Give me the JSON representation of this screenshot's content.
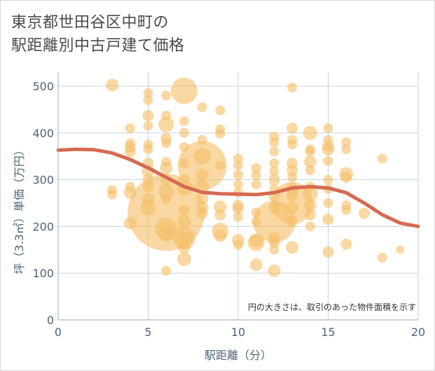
{
  "title": "東京都世田谷区中町の\n駅距離別中古戸建て価格",
  "chart_data": {
    "type": "scatter",
    "title": "東京都世田谷区中町の駅距離別中古戸建て価格",
    "xlabel": "駅距離（分）",
    "ylabel": "坪（3.3㎡）単価（万円）",
    "xlim": [
      0,
      20
    ],
    "ylim": [
      0,
      530
    ],
    "x_ticks": [
      "0",
      "5",
      "10",
      "15",
      "20"
    ],
    "y_ticks": [
      "0",
      "100",
      "200",
      "300",
      "400",
      "500"
    ],
    "x_tick_values": [
      0,
      5,
      10,
      15,
      20
    ],
    "y_tick_values": [
      0,
      100,
      200,
      300,
      400,
      500
    ],
    "grid": true,
    "annotation": "円の大きさは、取引のあった物件面積を示す",
    "bubble_color": "#f5c06b",
    "line_color": "#d66a52",
    "points": [
      {
        "x": 3,
        "y": 502,
        "s": 9
      },
      {
        "x": 3,
        "y": 278,
        "s": 7
      },
      {
        "x": 3,
        "y": 268,
        "s": 7
      },
      {
        "x": 4,
        "y": 410,
        "s": 7
      },
      {
        "x": 4,
        "y": 378,
        "s": 7
      },
      {
        "x": 4,
        "y": 370,
        "s": 8
      },
      {
        "x": 4,
        "y": 360,
        "s": 8
      },
      {
        "x": 4,
        "y": 285,
        "s": 7
      },
      {
        "x": 4,
        "y": 272,
        "s": 9
      },
      {
        "x": 4,
        "y": 207,
        "s": 9
      },
      {
        "x": 5,
        "y": 485,
        "s": 7
      },
      {
        "x": 5,
        "y": 470,
        "s": 7
      },
      {
        "x": 5,
        "y": 437,
        "s": 8
      },
      {
        "x": 5,
        "y": 415,
        "s": 7
      },
      {
        "x": 5,
        "y": 375,
        "s": 7
      },
      {
        "x": 5,
        "y": 365,
        "s": 7
      },
      {
        "x": 5,
        "y": 335,
        "s": 8
      },
      {
        "x": 5,
        "y": 318,
        "s": 9
      },
      {
        "x": 5,
        "y": 300,
        "s": 8
      },
      {
        "x": 5,
        "y": 285,
        "s": 8
      },
      {
        "x": 5,
        "y": 258,
        "s": 9
      },
      {
        "x": 5,
        "y": 240,
        "s": 11
      },
      {
        "x": 6,
        "y": 480,
        "s": 7
      },
      {
        "x": 6,
        "y": 437,
        "s": 7
      },
      {
        "x": 6,
        "y": 418,
        "s": 11
      },
      {
        "x": 6,
        "y": 388,
        "s": 8
      },
      {
        "x": 6,
        "y": 378,
        "s": 7
      },
      {
        "x": 6,
        "y": 338,
        "s": 7
      },
      {
        "x": 6,
        "y": 325,
        "s": 9
      },
      {
        "x": 6,
        "y": 300,
        "s": 8
      },
      {
        "x": 6,
        "y": 275,
        "s": 11
      },
      {
        "x": 6,
        "y": 258,
        "s": 7
      },
      {
        "x": 6,
        "y": 230,
        "s": 55
      },
      {
        "x": 6,
        "y": 195,
        "s": 16
      },
      {
        "x": 6,
        "y": 185,
        "s": 12
      },
      {
        "x": 6,
        "y": 105,
        "s": 7
      },
      {
        "x": 7,
        "y": 490,
        "s": 19
      },
      {
        "x": 7,
        "y": 425,
        "s": 7
      },
      {
        "x": 7,
        "y": 400,
        "s": 7
      },
      {
        "x": 7,
        "y": 370,
        "s": 7
      },
      {
        "x": 7,
        "y": 335,
        "s": 7
      },
      {
        "x": 7,
        "y": 300,
        "s": 8
      },
      {
        "x": 7,
        "y": 280,
        "s": 10
      },
      {
        "x": 7,
        "y": 235,
        "s": 8
      },
      {
        "x": 7,
        "y": 210,
        "s": 10
      },
      {
        "x": 7,
        "y": 175,
        "s": 16
      },
      {
        "x": 7,
        "y": 170,
        "s": 12
      },
      {
        "x": 7,
        "y": 155,
        "s": 9
      },
      {
        "x": 7,
        "y": 130,
        "s": 10
      },
      {
        "x": 8,
        "y": 455,
        "s": 7
      },
      {
        "x": 8,
        "y": 385,
        "s": 7
      },
      {
        "x": 8,
        "y": 350,
        "s": 12
      },
      {
        "x": 8,
        "y": 330,
        "s": 35
      },
      {
        "x": 8,
        "y": 310,
        "s": 9
      },
      {
        "x": 8,
        "y": 285,
        "s": 10
      },
      {
        "x": 8,
        "y": 260,
        "s": 9
      },
      {
        "x": 8,
        "y": 240,
        "s": 9
      },
      {
        "x": 8,
        "y": 228,
        "s": 8
      },
      {
        "x": 9,
        "y": 448,
        "s": 7
      },
      {
        "x": 9,
        "y": 408,
        "s": 7
      },
      {
        "x": 9,
        "y": 398,
        "s": 7
      },
      {
        "x": 9,
        "y": 330,
        "s": 7
      },
      {
        "x": 9,
        "y": 242,
        "s": 9
      },
      {
        "x": 9,
        "y": 225,
        "s": 8
      },
      {
        "x": 9,
        "y": 190,
        "s": 12
      },
      {
        "x": 9,
        "y": 180,
        "s": 9
      },
      {
        "x": 10,
        "y": 345,
        "s": 7
      },
      {
        "x": 10,
        "y": 330,
        "s": 7
      },
      {
        "x": 10,
        "y": 310,
        "s": 7
      },
      {
        "x": 10,
        "y": 290,
        "s": 7
      },
      {
        "x": 10,
        "y": 272,
        "s": 7
      },
      {
        "x": 10,
        "y": 245,
        "s": 8
      },
      {
        "x": 10,
        "y": 238,
        "s": 8
      },
      {
        "x": 10,
        "y": 220,
        "s": 7
      },
      {
        "x": 10,
        "y": 170,
        "s": 9
      },
      {
        "x": 10,
        "y": 160,
        "s": 7
      },
      {
        "x": 11,
        "y": 325,
        "s": 7
      },
      {
        "x": 11,
        "y": 310,
        "s": 7
      },
      {
        "x": 11,
        "y": 290,
        "s": 7
      },
      {
        "x": 11,
        "y": 230,
        "s": 7
      },
      {
        "x": 11,
        "y": 210,
        "s": 7
      },
      {
        "x": 11,
        "y": 170,
        "s": 10
      },
      {
        "x": 11,
        "y": 165,
        "s": 12
      },
      {
        "x": 11,
        "y": 118,
        "s": 9
      },
      {
        "x": 12,
        "y": 392,
        "s": 7
      },
      {
        "x": 12,
        "y": 380,
        "s": 7
      },
      {
        "x": 12,
        "y": 360,
        "s": 7
      },
      {
        "x": 12,
        "y": 335,
        "s": 7
      },
      {
        "x": 12,
        "y": 318,
        "s": 7
      },
      {
        "x": 12,
        "y": 300,
        "s": 8
      },
      {
        "x": 12,
        "y": 280,
        "s": 7
      },
      {
        "x": 12,
        "y": 265,
        "s": 8
      },
      {
        "x": 12,
        "y": 240,
        "s": 8
      },
      {
        "x": 12,
        "y": 210,
        "s": 30
      },
      {
        "x": 12,
        "y": 175,
        "s": 9
      },
      {
        "x": 12,
        "y": 165,
        "s": 8
      },
      {
        "x": 12,
        "y": 150,
        "s": 7
      },
      {
        "x": 12,
        "y": 105,
        "s": 9
      },
      {
        "x": 13,
        "y": 497,
        "s": 7
      },
      {
        "x": 13,
        "y": 410,
        "s": 8
      },
      {
        "x": 13,
        "y": 385,
        "s": 7
      },
      {
        "x": 13,
        "y": 375,
        "s": 7
      },
      {
        "x": 13,
        "y": 335,
        "s": 8
      },
      {
        "x": 13,
        "y": 320,
        "s": 8
      },
      {
        "x": 13,
        "y": 305,
        "s": 7
      },
      {
        "x": 13,
        "y": 280,
        "s": 9
      },
      {
        "x": 13,
        "y": 265,
        "s": 8
      },
      {
        "x": 13,
        "y": 250,
        "s": 30
      },
      {
        "x": 13,
        "y": 240,
        "s": 9
      },
      {
        "x": 13,
        "y": 210,
        "s": 8
      },
      {
        "x": 13,
        "y": 155,
        "s": 9
      },
      {
        "x": 14,
        "y": 400,
        "s": 10
      },
      {
        "x": 14,
        "y": 365,
        "s": 7
      },
      {
        "x": 14,
        "y": 360,
        "s": 7
      },
      {
        "x": 14,
        "y": 338,
        "s": 9
      },
      {
        "x": 14,
        "y": 320,
        "s": 7
      },
      {
        "x": 14,
        "y": 285,
        "s": 7
      },
      {
        "x": 14,
        "y": 270,
        "s": 11
      },
      {
        "x": 14,
        "y": 245,
        "s": 9
      },
      {
        "x": 14,
        "y": 225,
        "s": 8
      },
      {
        "x": 14,
        "y": 200,
        "s": 7
      },
      {
        "x": 15,
        "y": 410,
        "s": 7
      },
      {
        "x": 15,
        "y": 385,
        "s": 7
      },
      {
        "x": 15,
        "y": 372,
        "s": 8
      },
      {
        "x": 15,
        "y": 365,
        "s": 9
      },
      {
        "x": 15,
        "y": 340,
        "s": 7
      },
      {
        "x": 15,
        "y": 300,
        "s": 7
      },
      {
        "x": 15,
        "y": 280,
        "s": 7
      },
      {
        "x": 15,
        "y": 250,
        "s": 7
      },
      {
        "x": 15,
        "y": 215,
        "s": 8
      },
      {
        "x": 15,
        "y": 145,
        "s": 8
      },
      {
        "x": 16,
        "y": 380,
        "s": 7
      },
      {
        "x": 16,
        "y": 365,
        "s": 7
      },
      {
        "x": 16,
        "y": 312,
        "s": 10
      },
      {
        "x": 16,
        "y": 305,
        "s": 8
      },
      {
        "x": 16,
        "y": 245,
        "s": 7
      },
      {
        "x": 16,
        "y": 235,
        "s": 7
      },
      {
        "x": 16,
        "y": 162,
        "s": 8
      },
      {
        "x": 17,
        "y": 228,
        "s": 8
      },
      {
        "x": 18,
        "y": 345,
        "s": 7
      },
      {
        "x": 18,
        "y": 133,
        "s": 7
      },
      {
        "x": 19,
        "y": 150,
        "s": 6
      }
    ],
    "trend_line": [
      {
        "x": 0,
        "y": 363
      },
      {
        "x": 1,
        "y": 365
      },
      {
        "x": 2,
        "y": 364
      },
      {
        "x": 3,
        "y": 357
      },
      {
        "x": 4,
        "y": 343
      },
      {
        "x": 5,
        "y": 325
      },
      {
        "x": 6,
        "y": 305
      },
      {
        "x": 7,
        "y": 285
      },
      {
        "x": 8,
        "y": 273
      },
      {
        "x": 9,
        "y": 270
      },
      {
        "x": 10,
        "y": 269
      },
      {
        "x": 11,
        "y": 268
      },
      {
        "x": 12,
        "y": 272
      },
      {
        "x": 13,
        "y": 282
      },
      {
        "x": 14,
        "y": 285
      },
      {
        "x": 15,
        "y": 282
      },
      {
        "x": 16,
        "y": 272
      },
      {
        "x": 17,
        "y": 250
      },
      {
        "x": 18,
        "y": 225
      },
      {
        "x": 19,
        "y": 207
      },
      {
        "x": 20,
        "y": 200
      }
    ]
  }
}
